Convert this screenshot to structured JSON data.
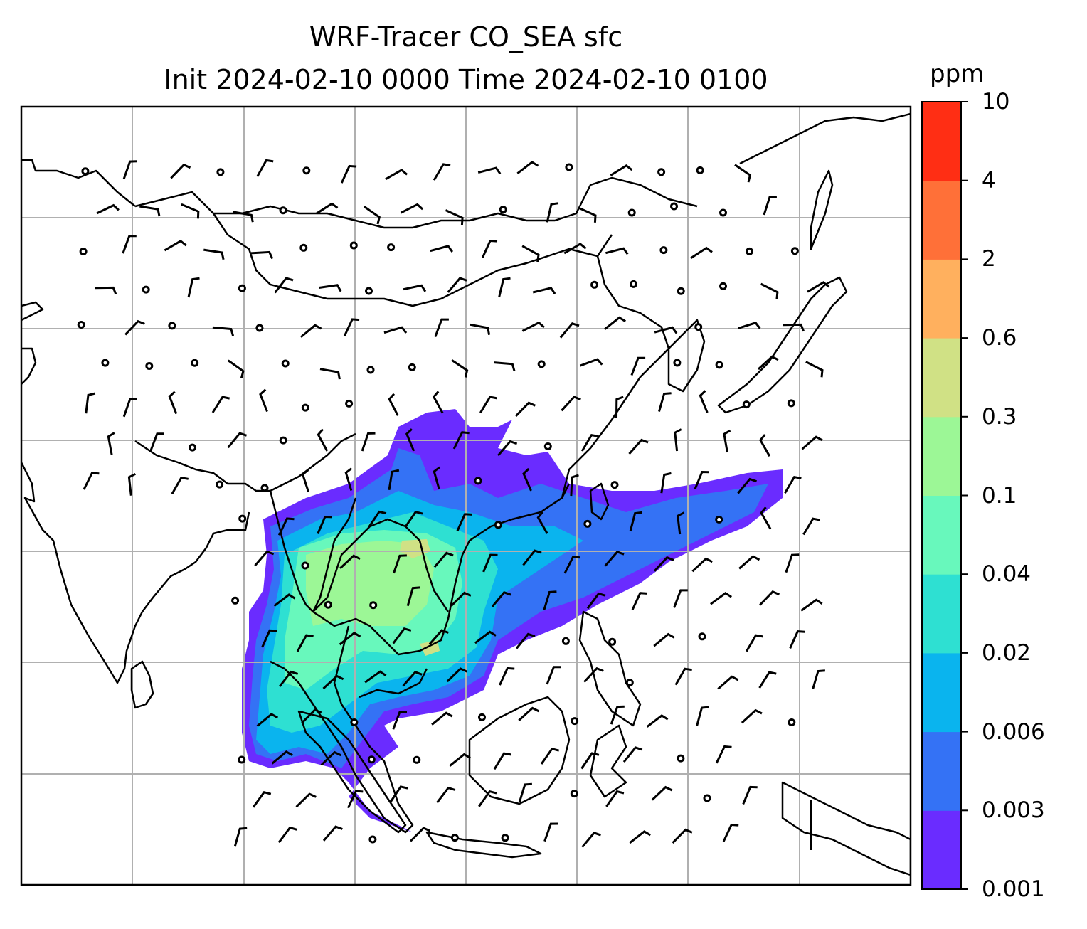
{
  "title": {
    "line1": "WRF-Tracer CO_SEA sfc",
    "line2": "Init 2024-02-10 0000 Time 2024-02-10 0100"
  },
  "colorbar": {
    "unit": "ppm",
    "levels": [
      "0.001",
      "0.003",
      "0.006",
      "0.02",
      "0.04",
      "0.1",
      "0.3",
      "0.6",
      "2",
      "4",
      "10"
    ],
    "colors": [
      "#6a2cff",
      "#3472f5",
      "#0ab4ee",
      "#2ee0d2",
      "#68f8bc",
      "#9cf796",
      "#d0e185",
      "#ffb05e",
      "#ff7038",
      "#ff2e14"
    ]
  },
  "map_colors": {
    "coast": "#000000",
    "grid": "#b0b0b0",
    "barb": "#000000"
  }
}
